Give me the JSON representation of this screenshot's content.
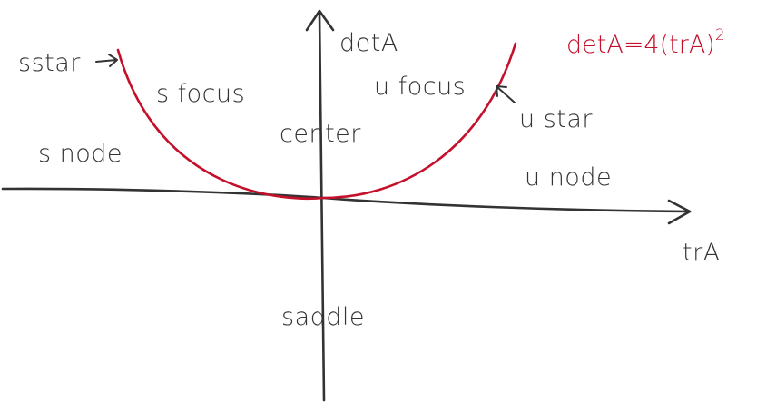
{
  "axes": {
    "x_label": "trA",
    "y_label": "detA"
  },
  "equation": {
    "lhs": "detA",
    "rhs": "=4(trA)",
    "exponent": "2"
  },
  "regions": {
    "s_star": "sstar",
    "s_focus": "s focus",
    "u_focus": "u focus",
    "u_star": "u star",
    "s_node": "s node",
    "center": "center",
    "u_node": "u node",
    "saddle": "saddle"
  },
  "colors": {
    "ink": "#333333",
    "curve": "#c4102a"
  }
}
